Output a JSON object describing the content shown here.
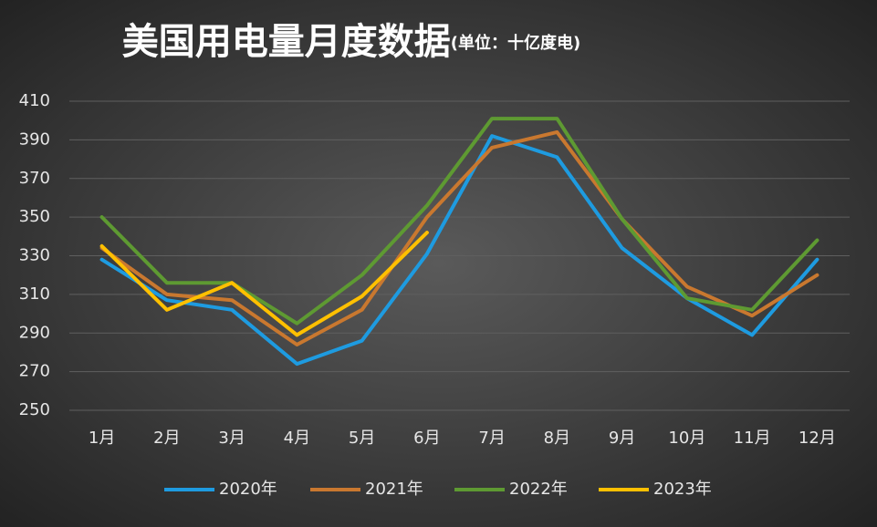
{
  "chart_data": {
    "type": "line",
    "title": "美国用电量月度数据",
    "subtitle": "(单位：十亿度电)",
    "categories": [
      "1月",
      "2月",
      "3月",
      "4月",
      "5月",
      "6月",
      "7月",
      "8月",
      "9月",
      "10月",
      "11月",
      "12月"
    ],
    "series": [
      {
        "name": "2020年",
        "color": "#1e9be0",
        "values": [
          328,
          307,
          302,
          274,
          286,
          331,
          392,
          381,
          334,
          308,
          289,
          328
        ]
      },
      {
        "name": "2021年",
        "color": "#c9782f",
        "values": [
          334,
          310,
          307,
          284,
          302,
          350,
          386,
          394,
          349,
          314,
          299,
          320
        ]
      },
      {
        "name": "2022年",
        "color": "#5e9a32",
        "values": [
          350,
          316,
          316,
          295,
          320,
          356,
          401,
          401,
          349,
          308,
          302,
          338
        ]
      },
      {
        "name": "2023年",
        "color": "#ffc000",
        "values": [
          335,
          302,
          316,
          289,
          309,
          342,
          null,
          null,
          null,
          null,
          null,
          null
        ]
      }
    ],
    "ylim": [
      250,
      410
    ],
    "yticks": [
      250,
      270,
      290,
      310,
      330,
      350,
      370,
      390,
      410
    ],
    "grid": true,
    "legend": "bottom"
  }
}
